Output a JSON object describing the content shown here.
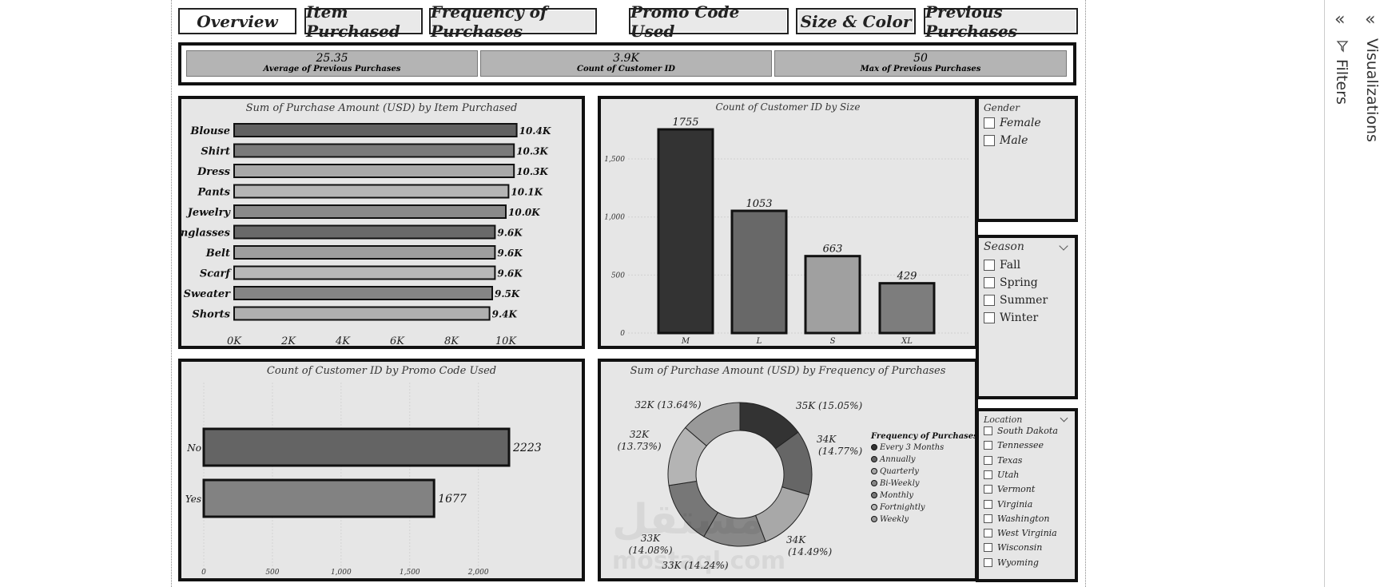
{
  "tabs": [
    "Overview",
    "Item Purchased",
    "Frequency of Purchases",
    "Promo Code Used",
    "Size & Color",
    "Previous Purchases"
  ],
  "kpis": [
    {
      "value": "25.35",
      "label": "Average of Previous Purchases"
    },
    {
      "value": "3.9K",
      "label": "Count of Customer ID"
    },
    {
      "value": "50",
      "label": "Max of Previous Purchases"
    }
  ],
  "items_chart": {
    "title": "Sum of Purchase Amount (USD) by Item Purchased",
    "chart_data": {
      "type": "bar",
      "orientation": "horizontal",
      "categories": [
        "Blouse",
        "Shirt",
        "Dress",
        "Pants",
        "Jewelry",
        "Sunglasses",
        "Belt",
        "Scarf",
        "Sweater",
        "Shorts"
      ],
      "values": [
        10400,
        10300,
        10300,
        10100,
        10000,
        9600,
        9600,
        9600,
        9500,
        9400
      ],
      "labels": [
        "10.4K",
        "10.3K",
        "10.3K",
        "10.1K",
        "10.0K",
        "9.6K",
        "9.6K",
        "9.6K",
        "9.5K",
        "9.4K"
      ],
      "fills": [
        "#616161",
        "#7a7a7a",
        "#a8a8a8",
        "#b5b5b5",
        "#8a8a8a",
        "#6a6a6a",
        "#9e9e9e",
        "#b8b8b8",
        "#858585",
        "#b0b0b0"
      ],
      "xticks": [
        "0K",
        "2K",
        "4K",
        "6K",
        "8K",
        "10K"
      ],
      "xlim": [
        0,
        10000
      ]
    }
  },
  "size_chart": {
    "title": "Count of Customer ID by Size",
    "chart_data": {
      "type": "bar",
      "categories": [
        "M",
        "L",
        "S",
        "XL"
      ],
      "values": [
        1755,
        1053,
        663,
        429
      ],
      "fills": [
        "#333333",
        "#686868",
        "#a0a0a0",
        "#7d7d7d"
      ],
      "yticks": [
        "0",
        "500",
        "1,000",
        "1,500"
      ],
      "ylim": [
        0,
        1755
      ],
      "grid": true
    }
  },
  "promo_chart": {
    "title": "Count of Customer ID by Promo Code Used",
    "chart_data": {
      "type": "bar",
      "orientation": "horizontal",
      "categories": [
        "No",
        "Yes"
      ],
      "values": [
        2223,
        1677
      ],
      "fills": [
        "#646464",
        "#828282"
      ],
      "xticks": [
        "0",
        "500",
        "1,000",
        "1,500",
        "2,000"
      ],
      "xlim": [
        0,
        2223
      ],
      "grid": true
    }
  },
  "freq_chart": {
    "title": "Sum of Purchase Amount (USD) by Frequency of Purchases",
    "legend_title": "Frequency of Purchases",
    "chart_data": {
      "type": "pie",
      "donut": true,
      "categories": [
        "Every 3 Months",
        "Annually",
        "Quarterly",
        "Bi-Weekly",
        "Monthly",
        "Fortnightly",
        "Weekly"
      ],
      "values": [
        35,
        34,
        34,
        33,
        33,
        32,
        32
      ],
      "percents": [
        15.05,
        14.77,
        14.49,
        14.24,
        14.08,
        13.73,
        13.64
      ],
      "labels": [
        "35K (15.05%)",
        "34K (14.77%)",
        "34K (14.49%)",
        "33K (14.24%)",
        "33K (14.08%)",
        "32K (13.73%)",
        "32K (13.64%)"
      ],
      "fills": [
        "#333333",
        "#666666",
        "#a8a8a8",
        "#888888",
        "#777777",
        "#b4b4b4",
        "#999999"
      ],
      "legend": "right"
    }
  },
  "slicers": {
    "gender": {
      "title": "Gender",
      "items": [
        "Female",
        "Male"
      ]
    },
    "season": {
      "title": "Season",
      "items": [
        "Fall",
        "Spring",
        "Summer",
        "Winter"
      ]
    },
    "location": {
      "title": "Location",
      "items": [
        "South Dakota",
        "Tennessee",
        "Texas",
        "Utah",
        "Vermont",
        "Virginia",
        "Washington",
        "West Virginia",
        "Wisconsin",
        "Wyoming"
      ]
    }
  },
  "pane": {
    "filters": "Filters",
    "visualizations": "Visualizations"
  },
  "watermark": {
    "arabic": "مستقل",
    "latin": "mostaql.com"
  }
}
